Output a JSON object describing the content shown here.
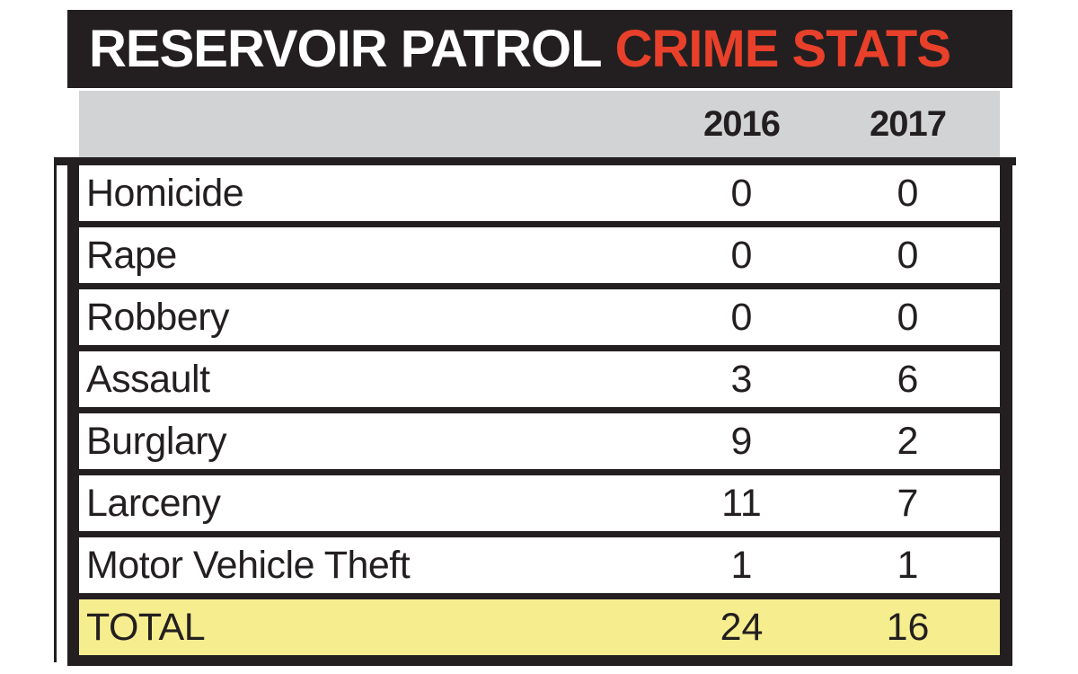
{
  "title": {
    "primary": "RESERVOIR PATROL",
    "accent": "CRIME STATS"
  },
  "table": {
    "years": [
      "2016",
      "2017"
    ],
    "rows": [
      {
        "label": "Homicide",
        "v2016": "0",
        "v2017": "0"
      },
      {
        "label": "Rape",
        "v2016": "0",
        "v2017": "0"
      },
      {
        "label": "Robbery",
        "v2016": "0",
        "v2017": "0"
      },
      {
        "label": "Assault",
        "v2016": "3",
        "v2017": "6"
      },
      {
        "label": "Burglary",
        "v2016": "9",
        "v2017": "2"
      },
      {
        "label": "Larceny",
        "v2016": "11",
        "v2017": "7"
      },
      {
        "label": "Motor Vehicle Theft",
        "v2016": "1",
        "v2017": "1"
      }
    ],
    "total": {
      "label": "TOTAL",
      "v2016": "24",
      "v2017": "16"
    }
  },
  "colors": {
    "bar_black": "#231f20",
    "accent_red": "#e8402a",
    "header_gray": "#d2d3d4",
    "total_yellow": "#f6ee8e",
    "row_white": "#ffffff"
  },
  "chart_data": {
    "type": "table",
    "title": "RESERVOIR PATROL CRIME STATS",
    "categories": [
      "Homicide",
      "Rape",
      "Robbery",
      "Assault",
      "Burglary",
      "Larceny",
      "Motor Vehicle Theft"
    ],
    "series": [
      {
        "name": "2016",
        "values": [
          0,
          0,
          0,
          3,
          9,
          11,
          1
        ]
      },
      {
        "name": "2017",
        "values": [
          0,
          0,
          0,
          6,
          2,
          7,
          1
        ]
      }
    ],
    "totals": {
      "2016": 24,
      "2017": 16
    },
    "layout": "crime categories as rows, years as columns, total row highlighted yellow"
  }
}
